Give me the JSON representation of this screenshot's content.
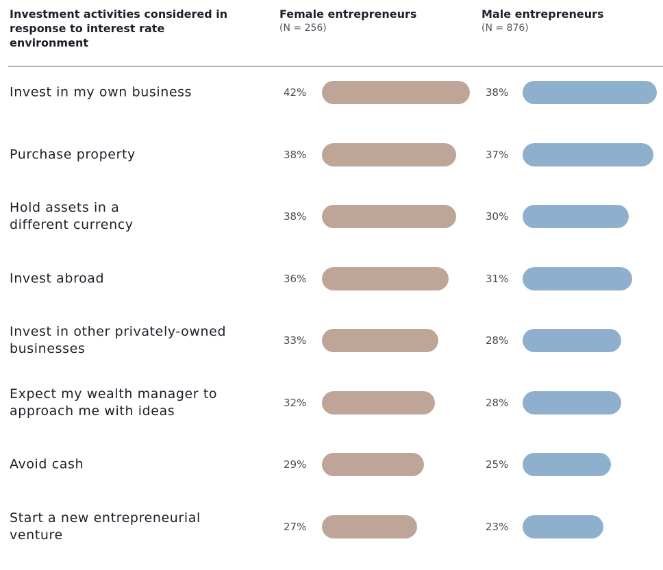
{
  "header": {
    "category_title": "Investment activities considered in response to interest rate environment",
    "female_title": "Female entrepreneurs",
    "female_n": "(N = 256)",
    "male_title": "Male entrepreneurs",
    "male_n": "(N = 876)"
  },
  "chart_data": {
    "type": "bar",
    "orientation": "horizontal",
    "unit": "%",
    "categories": [
      "Invest in my own business",
      "Purchase property",
      "Hold assets in a different currency",
      "Invest abroad",
      "Invest in other privately-owned businesses",
      "Expect my wealth manager to approach me with ideas",
      "Avoid cash",
      "Start a new entrepreneurial venture"
    ],
    "series": [
      {
        "name": "Female entrepreneurs",
        "color": "#bfa597",
        "values": [
          42,
          38,
          38,
          36,
          33,
          32,
          29,
          27
        ]
      },
      {
        "name": "Male entrepreneurs",
        "color": "#8fb0cd",
        "values": [
          38,
          37,
          30,
          31,
          28,
          28,
          25,
          23
        ]
      }
    ],
    "value_labels": {
      "female": [
        "42%",
        "38%",
        "38%",
        "36%",
        "33%",
        "32%",
        "29%",
        "27%"
      ],
      "male": [
        "38%",
        "37%",
        "30%",
        "31%",
        "28%",
        "28%",
        "25%",
        "23%"
      ]
    }
  }
}
